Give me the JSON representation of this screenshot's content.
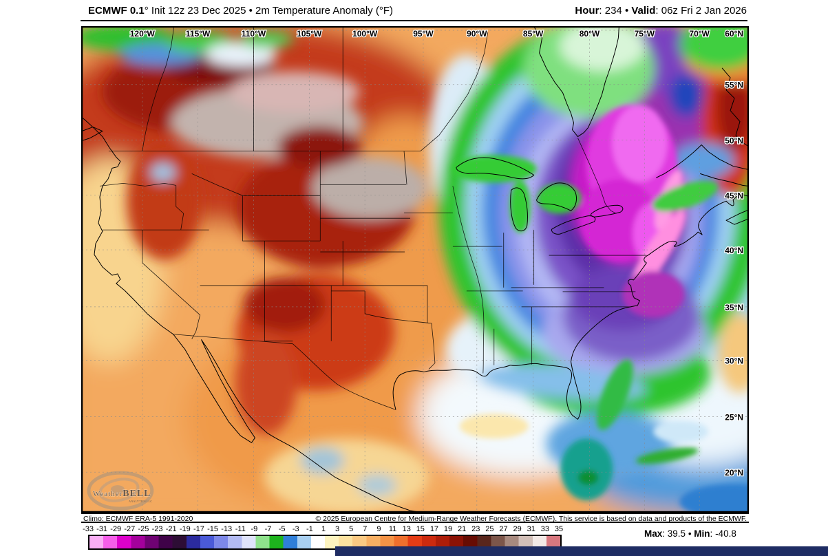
{
  "header": {
    "title_bold": "ECMWF 0.1",
    "title_rest": "° Init 12z 23 Dec 2025 • 2m Temperature Anomaly (°F)",
    "hour_label": "Hour",
    "colon": ": ",
    "hour_value": "234",
    "bullet": " • ",
    "valid_label": "Valid",
    "valid_value": "06z Fri 2 Jan 2026"
  },
  "map": {
    "top_labels": [
      "120°W",
      "115°W",
      "110°W",
      "105°W",
      "100°W",
      "95°W",
      "90°W",
      "85°W",
      "80°W",
      "75°W",
      "70°W"
    ],
    "top_right_label": "60°N",
    "right_labels": [
      "55°N",
      "50°N",
      "45°N",
      "40°N",
      "35°N",
      "30°N",
      "25°N",
      "20°N"
    ],
    "watermark": {
      "name_regular": "Weather",
      "name_bold": "BELL",
      "subtitle": "ANALYTICS LLC"
    }
  },
  "footer": {
    "climo": "Climo: ECMWF ERA-5 1991-2020",
    "copyright": "© 2025 European Centre for Medium-Range Weather Forecasts (ECMWF). This service is based on data and products of the ECMWF."
  },
  "colorbar": {
    "labels": [
      "-33",
      "-31",
      "-29",
      "-27",
      "-25",
      "-23",
      "-21",
      "-19",
      "-17",
      "-15",
      "-13",
      "-11",
      "-9",
      "-7",
      "-5",
      "-3",
      "-1",
      "1",
      "3",
      "5",
      "7",
      "9",
      "11",
      "13",
      "15",
      "17",
      "19",
      "21",
      "23",
      "25",
      "27",
      "29",
      "31",
      "33",
      "35"
    ],
    "colors": [
      "#f9aef5",
      "#f55fe9",
      "#dd01cb",
      "#a4019c",
      "#6f0273",
      "#3f0248",
      "#2d0d35",
      "#2b2b9e",
      "#4a5ad8",
      "#7d88e8",
      "#b3bbf3",
      "#dfe3fb",
      "#8fe28c",
      "#1db31d",
      "#2f7fd9",
      "#a9d0f1",
      "#ffffff",
      "#fdf4bf",
      "#fce2a0",
      "#fac983",
      "#f7af63",
      "#f49346",
      "#ee6f2d",
      "#e43c15",
      "#cc2a0e",
      "#ad1d09",
      "#8c1205",
      "#670c03",
      "#59261c",
      "#7d564a",
      "#a88a7f",
      "#d2bfb8",
      "#f3e9e6",
      "#d8777f"
    ]
  },
  "stats": {
    "max_label": "Max",
    "colon": ": ",
    "max_value": "39.5",
    "bullet": " • ",
    "min_label": "Min",
    "min_value": "-40.8"
  }
}
